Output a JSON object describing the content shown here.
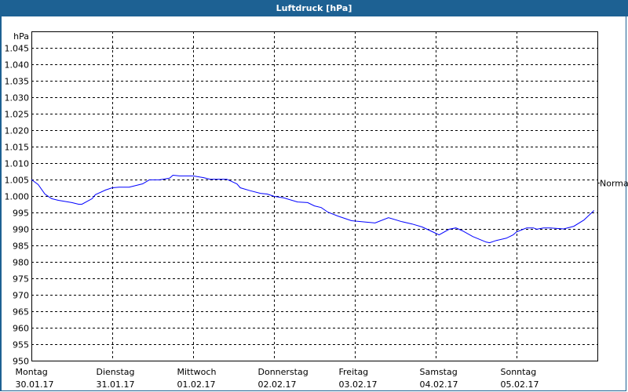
{
  "window": {
    "title": "Luftdruck [hPa]"
  },
  "chart_data": {
    "type": "line",
    "title": "Luftdruck [hPa]",
    "ylabel": "hPa",
    "ylim": [
      950,
      1050
    ],
    "yticks": [
      950,
      955,
      960,
      965,
      970,
      975,
      980,
      985,
      990,
      995,
      1000,
      1005,
      1010,
      1015,
      1020,
      1025,
      1030,
      1035,
      1040,
      1045
    ],
    "ytick_labels": [
      "950",
      "955",
      "960",
      "965",
      "970",
      "975",
      "980",
      "985",
      "990",
      "995",
      "1.000",
      "1.005",
      "1.010",
      "1.015",
      "1.020",
      "1.025",
      "1.030",
      "1.035",
      "1.040",
      "1.045"
    ],
    "x_categories": [
      {
        "day": "Montag",
        "date": "30.01.17"
      },
      {
        "day": "Dienstag",
        "date": "31.01.17"
      },
      {
        "day": "Mittwoch",
        "date": "01.02.17"
      },
      {
        "day": "Donnerstag",
        "date": "02.02.17"
      },
      {
        "day": "Freitag",
        "date": "03.02.17"
      },
      {
        "day": "Samstag",
        "date": "04.02.17"
      },
      {
        "day": "Sonntag",
        "date": "05.02.17"
      }
    ],
    "grid": true,
    "normal_label": "Normal",
    "normal_level": 1004,
    "series_color": "#0000ff",
    "points": [
      [
        "30.01.17 00:00",
        1005.0
      ],
      [
        "30.01.17 02:00",
        1003.5
      ],
      [
        "30.01.17 04:00",
        1000.6
      ],
      [
        "30.01.17 06:00",
        999.2
      ],
      [
        "30.01.17 08:00",
        998.7
      ],
      [
        "30.01.17 12:00",
        998.0
      ],
      [
        "30.01.17 14:00",
        997.5
      ],
      [
        "30.01.17 15:00",
        997.5
      ],
      [
        "30.01.17 18:00",
        999.2
      ],
      [
        "30.01.17 19:00",
        1000.4
      ],
      [
        "30.01.17 22:00",
        1001.8
      ],
      [
        "31.01.17 00:00",
        1002.5
      ],
      [
        "31.01.17 02:00",
        1002.7
      ],
      [
        "31.01.17 05:00",
        1002.7
      ],
      [
        "31.01.17 09:00",
        1003.7
      ],
      [
        "31.01.17 11:00",
        1004.9
      ],
      [
        "31.01.17 14:00",
        1004.9
      ],
      [
        "31.01.17 17:00",
        1005.4
      ],
      [
        "31.01.17 18:00",
        1006.3
      ],
      [
        "31.01.17 20:00",
        1006.1
      ],
      [
        "01.02.17 00:00",
        1006.1
      ],
      [
        "01.02.17 03:00",
        1005.6
      ],
      [
        "01.02.17 05:00",
        1005.1
      ],
      [
        "01.02.17 08:00",
        1005.1
      ],
      [
        "01.02.17 10:00",
        1005.1
      ],
      [
        "01.02.17 13:00",
        1003.7
      ],
      [
        "01.02.17 14:00",
        1002.5
      ],
      [
        "01.02.17 17:00",
        1001.6
      ],
      [
        "01.02.17 20:00",
        1000.8
      ],
      [
        "01.02.17 22:00",
        1000.6
      ],
      [
        "02.02.17 00:00",
        999.9
      ],
      [
        "02.02.17 03:00",
        999.4
      ],
      [
        "02.02.17 07:00",
        998.2
      ],
      [
        "02.02.17 10:00",
        998.0
      ],
      [
        "02.02.17 12:00",
        997.0
      ],
      [
        "02.02.17 14:00",
        996.5
      ],
      [
        "02.02.17 16:00",
        995.1
      ],
      [
        "02.02.17 19:00",
        993.9
      ],
      [
        "02.02.17 23:00",
        992.5
      ],
      [
        "03.02.17 02:00",
        992.2
      ],
      [
        "03.02.17 06:00",
        991.8
      ],
      [
        "03.02.17 10:00",
        993.4
      ],
      [
        "03.02.17 14:00",
        992.2
      ],
      [
        "03.02.17 17:00",
        991.5
      ],
      [
        "03.02.17 20:00",
        990.6
      ],
      [
        "04.02.17 00:00",
        988.7
      ],
      [
        "04.02.17 01:00",
        988.2
      ],
      [
        "04.02.17 04:00",
        989.9
      ],
      [
        "04.02.17 06:00",
        990.3
      ],
      [
        "04.02.17 08:00",
        989.4
      ],
      [
        "04.02.17 11:00",
        987.7
      ],
      [
        "04.02.17 15:00",
        986.0
      ],
      [
        "04.02.17 16:00",
        985.8
      ],
      [
        "04.02.17 18:00",
        986.5
      ],
      [
        "04.02.17 21:00",
        987.2
      ],
      [
        "04.02.17 23:00",
        988.2
      ],
      [
        "05.02.17 00:00",
        989.1
      ],
      [
        "05.02.17 02:00",
        989.9
      ],
      [
        "05.02.17 03:00",
        990.3
      ],
      [
        "05.02.17 05:00",
        990.3
      ],
      [
        "05.02.17 06:00",
        989.9
      ],
      [
        "05.02.17 08:00",
        990.3
      ],
      [
        "05.02.17 10:00",
        990.3
      ],
      [
        "05.02.17 14:00",
        990.0
      ],
      [
        "05.02.17 17:00",
        990.8
      ],
      [
        "05.02.17 20:00",
        992.7
      ],
      [
        "05.02.17 23:00",
        995.6
      ]
    ]
  }
}
